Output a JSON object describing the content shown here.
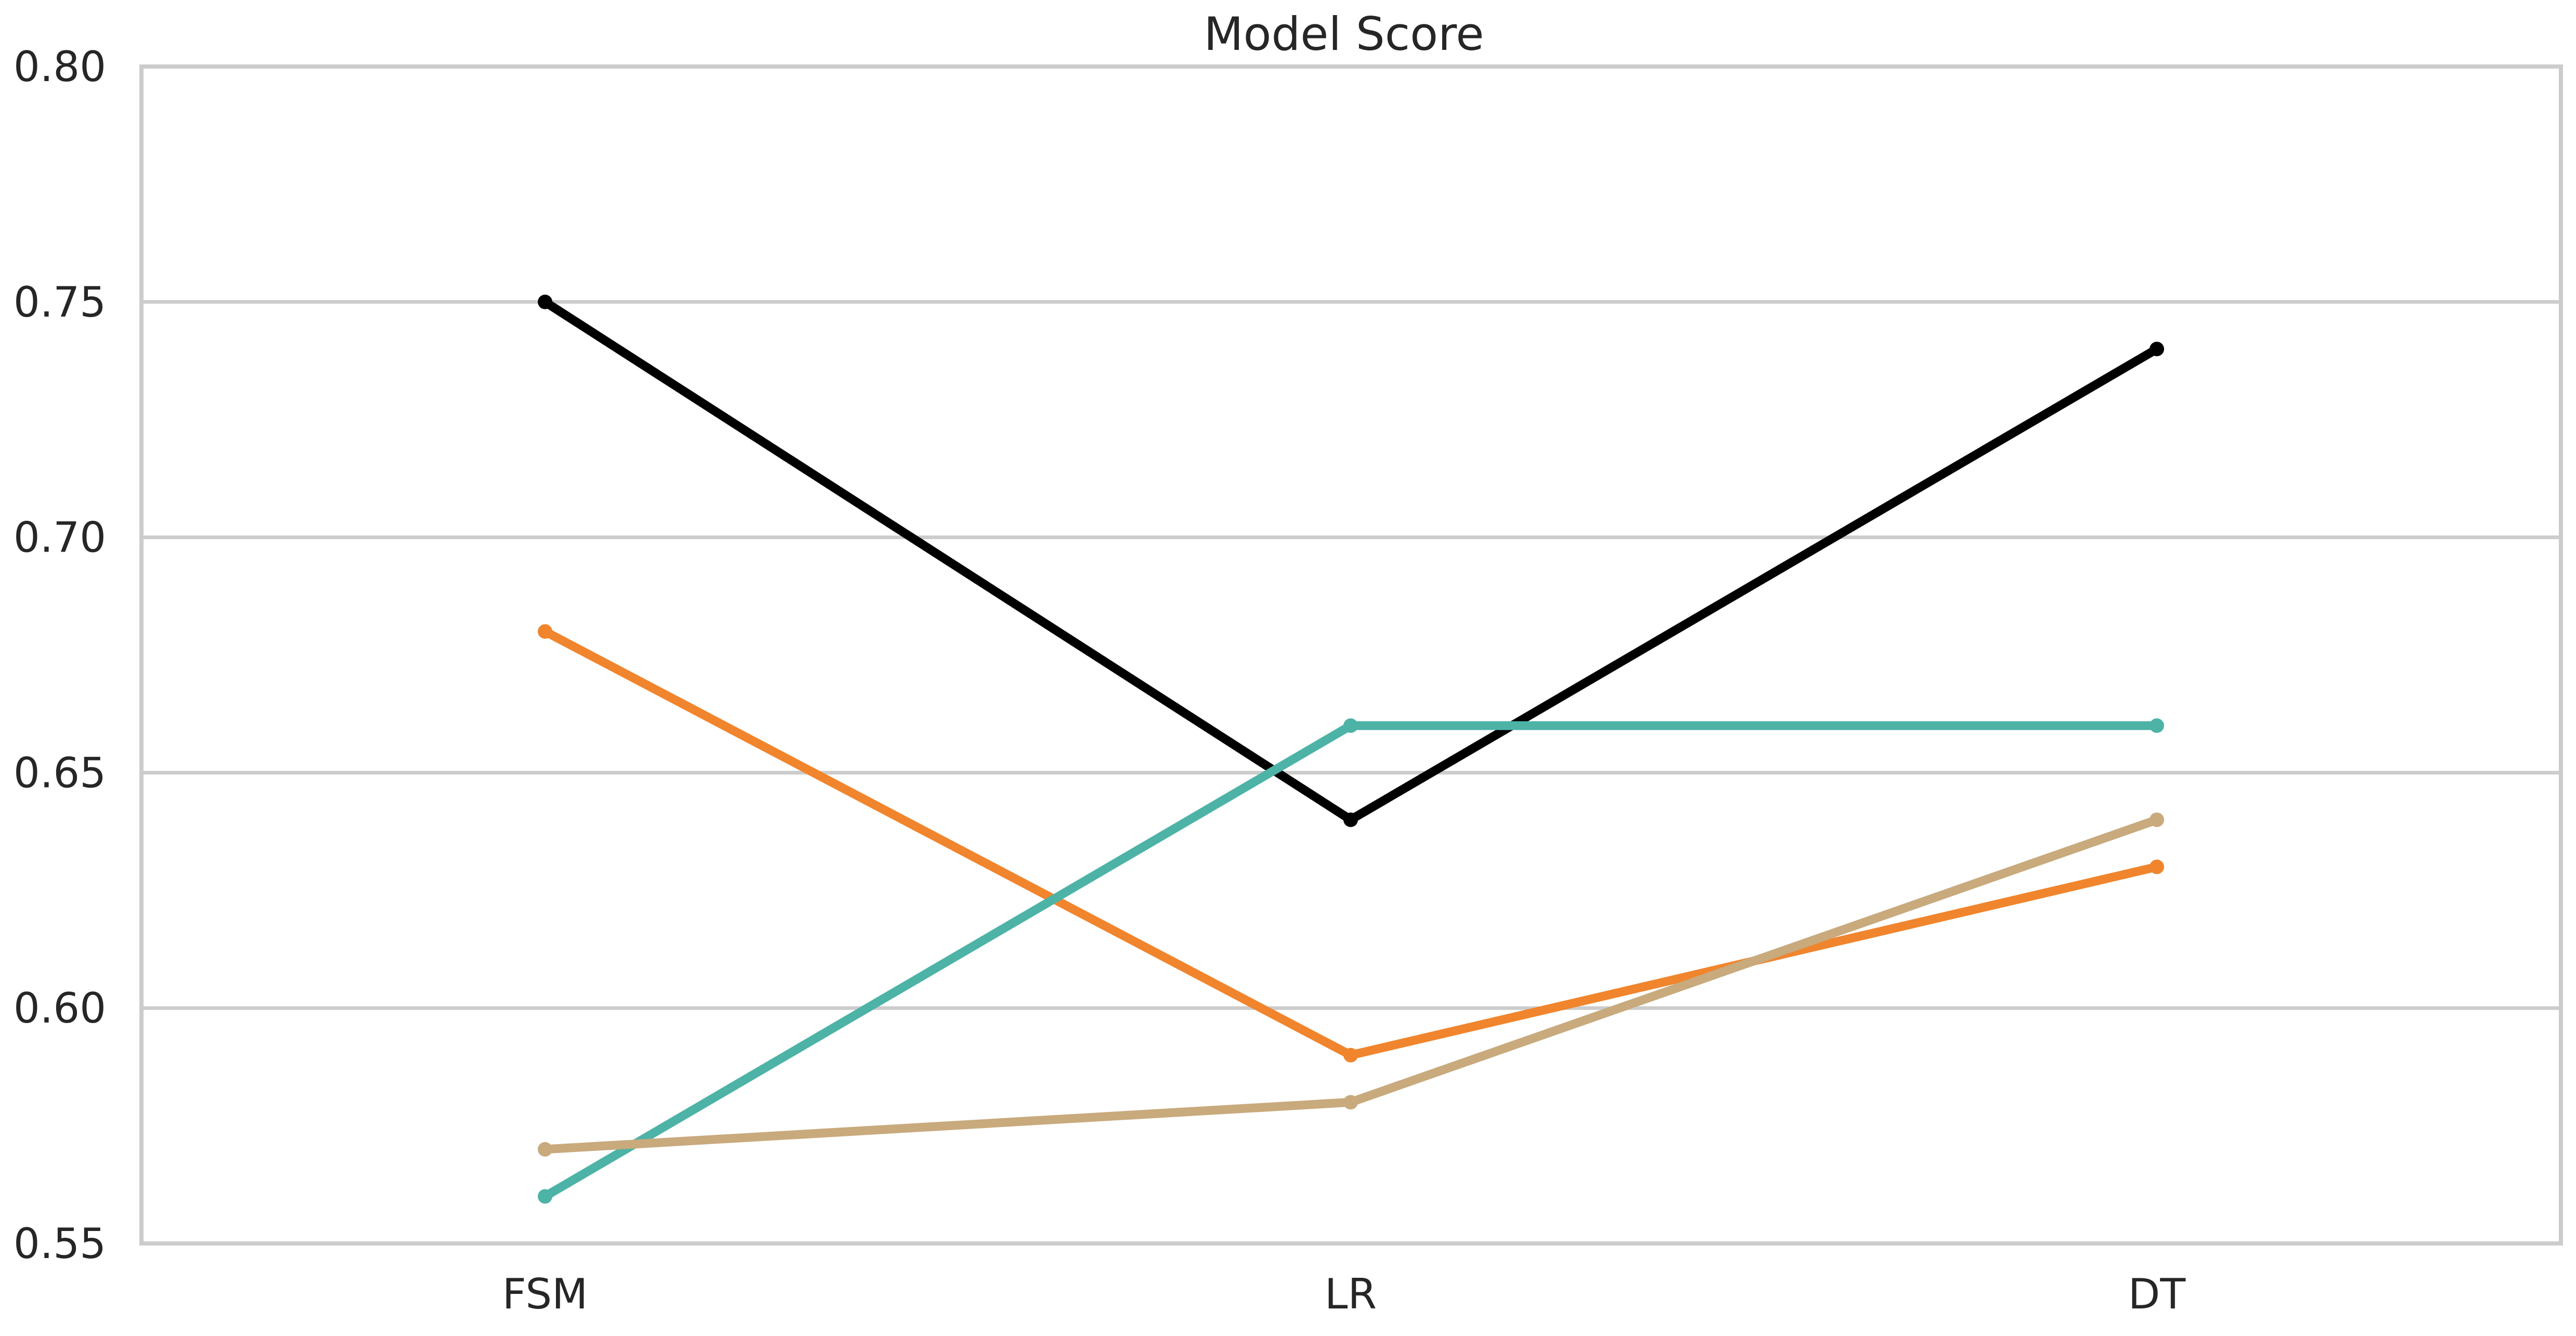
{
  "chart_data": {
    "type": "line",
    "title": "Model Score",
    "xlabel": "",
    "ylabel": "",
    "categories": [
      "FSM",
      "LR",
      "DT"
    ],
    "ylim": [
      0.55,
      0.8
    ],
    "yticks": [
      "0.55",
      "0.60",
      "0.65",
      "0.70",
      "0.75",
      "0.80"
    ],
    "grid": "horizontal",
    "legend": "none",
    "series": [
      {
        "color": "#000000",
        "values": [
          0.75,
          0.64,
          0.74
        ]
      },
      {
        "color": "#f0852d",
        "values": [
          0.68,
          0.59,
          0.63
        ]
      },
      {
        "color": "#4db3a6",
        "values": [
          0.56,
          0.66,
          0.66
        ]
      },
      {
        "color": "#c8aa7d",
        "values": [
          0.57,
          0.58,
          0.64
        ]
      }
    ]
  }
}
